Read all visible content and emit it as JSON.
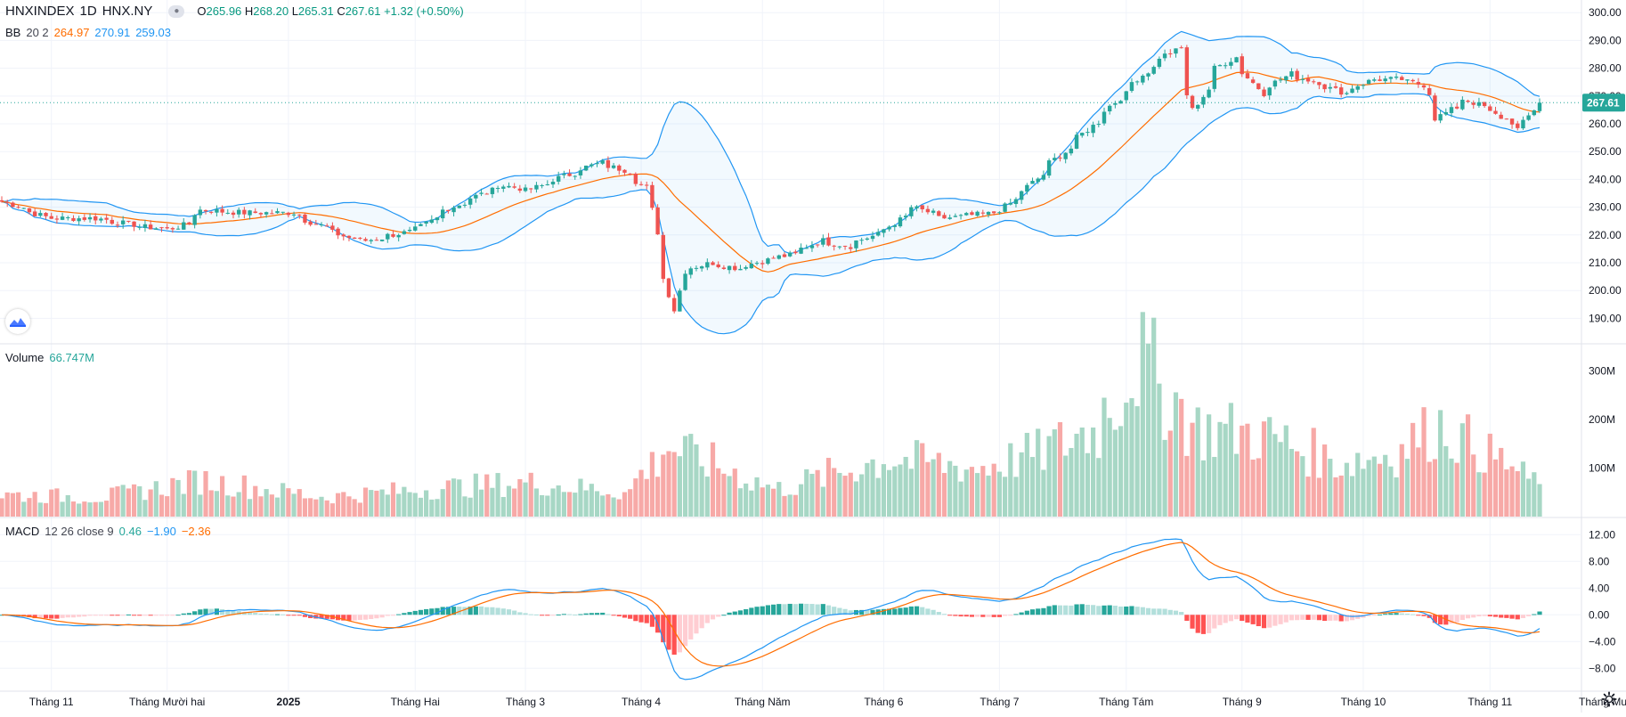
{
  "header": {
    "symbol": "HNXINDEX",
    "interval": "1D",
    "exchange": "HNX.NY",
    "ohlc": {
      "o_label": "O",
      "o": "265.96",
      "h_label": "H",
      "h": "268.20",
      "l_label": "L",
      "l": "265.31",
      "c_label": "C",
      "c": "267.61",
      "change": "+1.32 (+0.50%)"
    }
  },
  "bb_legend": {
    "name": "BB",
    "params": "20 2",
    "basis": "264.97",
    "upper": "270.91",
    "lower": "259.03"
  },
  "volume_legend": {
    "name": "Volume",
    "value": "66.747M"
  },
  "macd_legend": {
    "name": "MACD",
    "params": "12 26 close 9",
    "hist": "0.46",
    "macd": "−1.90",
    "signal": "−2.36"
  },
  "price_axis": {
    "ticks": [
      "300.00",
      "290.00",
      "280.00",
      "270.00",
      "260.00",
      "250.00",
      "240.00",
      "230.00",
      "220.00",
      "210.00",
      "200.00",
      "190.00"
    ],
    "last_price": "267.61"
  },
  "volume_axis": {
    "ticks": [
      "300M",
      "200M",
      "100M"
    ]
  },
  "macd_axis": {
    "ticks": [
      "12.00",
      "8.00",
      "4.00",
      "0.00",
      "−4.00",
      "−8.00"
    ]
  },
  "time_axis": {
    "labels": [
      "Tháng 11",
      "Tháng Mười hai",
      "2025",
      "Tháng Hai",
      "Tháng 3",
      "Tháng 4",
      "Tháng Năm",
      "Tháng 6",
      "Tháng 7",
      "Tháng Tám",
      "Tháng 9",
      "Tháng 10",
      "Tháng 11",
      "Tháng Mười hai"
    ]
  },
  "colors": {
    "up": "#26a69a",
    "down": "#ef5350",
    "volume_up": "#a7d7c5",
    "volume_down": "#f7a9a7",
    "bb_band": "#2196f3",
    "bb_basis": "#ff6d00",
    "bb_fill": "#2196f3",
    "macd_line": "#2196f3",
    "signal_line": "#ff6d00",
    "hist_up_strong": "#26a69a",
    "hist_up_weak": "#b2dfdb",
    "hist_down_strong": "#ff5252",
    "hist_down_weak": "#ffcdd2",
    "last_price_bg": "#26a69a",
    "grid": "#f0f3fa"
  },
  "icons": {
    "visibility": "eye-icon",
    "logo": "tradingview-logo-icon",
    "settings": "gear-icon"
  },
  "chart_data": [
    {
      "type": "candlestick",
      "title": "HNXINDEX",
      "x_start": "2024-10-21",
      "x_end": "2025-11-14",
      "ylim": [
        185,
        302
      ],
      "anchor_closes": [
        [
          "2024-10-21",
          232
        ],
        [
          "2024-11-01",
          226
        ],
        [
          "2024-11-13",
          226
        ],
        [
          "2024-11-25",
          223
        ],
        [
          "2024-12-02",
          222
        ],
        [
          "2024-12-06",
          224
        ],
        [
          "2024-12-10",
          229
        ],
        [
          "2024-12-20",
          228
        ],
        [
          "2025-01-02",
          228
        ],
        [
          "2025-01-08",
          224
        ],
        [
          "2025-01-16",
          219
        ],
        [
          "2025-01-21",
          218
        ],
        [
          "2025-02-03",
          222
        ],
        [
          "2025-02-10",
          229
        ],
        [
          "2025-02-18",
          234
        ],
        [
          "2025-02-24",
          238
        ],
        [
          "2025-03-03",
          236
        ],
        [
          "2025-03-10",
          240
        ],
        [
          "2025-03-17",
          244
        ],
        [
          "2025-03-21",
          246
        ],
        [
          "2025-03-28",
          243
        ],
        [
          "2025-04-02",
          237
        ],
        [
          "2025-04-04",
          221
        ],
        [
          "2025-04-09",
          193
        ],
        [
          "2025-04-11",
          207
        ],
        [
          "2025-04-18",
          210
        ],
        [
          "2025-04-25",
          208
        ],
        [
          "2025-05-02",
          211
        ],
        [
          "2025-05-09",
          213
        ],
        [
          "2025-05-16",
          218
        ],
        [
          "2025-05-23",
          216
        ],
        [
          "2025-06-02",
          222
        ],
        [
          "2025-06-09",
          230
        ],
        [
          "2025-06-16",
          226
        ],
        [
          "2025-06-23",
          227
        ],
        [
          "2025-06-30",
          228
        ],
        [
          "2025-07-07",
          236
        ],
        [
          "2025-07-14",
          246
        ],
        [
          "2025-07-21",
          255
        ],
        [
          "2025-07-28",
          265
        ],
        [
          "2025-08-04",
          275
        ],
        [
          "2025-08-11",
          284
        ],
        [
          "2025-08-15",
          287
        ],
        [
          "2025-08-19",
          265
        ],
        [
          "2025-08-25",
          280
        ],
        [
          "2025-08-29",
          284
        ],
        [
          "2025-09-05",
          271
        ],
        [
          "2025-09-12",
          278
        ],
        [
          "2025-09-19",
          275
        ],
        [
          "2025-09-26",
          271
        ],
        [
          "2025-10-03",
          276
        ],
        [
          "2025-10-10",
          276
        ],
        [
          "2025-10-16",
          274
        ],
        [
          "2025-10-20",
          262
        ],
        [
          "2025-10-27",
          269
        ],
        [
          "2025-11-03",
          264
        ],
        [
          "2025-11-10",
          258
        ],
        [
          "2025-11-14",
          267.61
        ]
      ],
      "volume_anchors_m": [
        [
          "2024-10-21",
          45
        ],
        [
          "2024-11-15",
          40
        ],
        [
          "2024-12-10",
          75
        ],
        [
          "2025-01-10",
          40
        ],
        [
          "2025-02-10",
          60
        ],
        [
          "2025-03-03",
          70
        ],
        [
          "2025-03-28",
          50
        ],
        [
          "2025-04-07",
          145
        ],
        [
          "2025-04-18",
          110
        ],
        [
          "2025-05-05",
          55
        ],
        [
          "2025-06-02",
          120
        ],
        [
          "2025-06-25",
          100
        ],
        [
          "2025-07-10",
          130
        ],
        [
          "2025-07-25",
          180
        ],
        [
          "2025-08-05",
          325
        ],
        [
          "2025-08-12",
          255
        ],
        [
          "2025-08-20",
          180
        ],
        [
          "2025-09-05",
          170
        ],
        [
          "2025-09-25",
          110
        ],
        [
          "2025-10-10",
          135
        ],
        [
          "2025-10-20",
          190
        ],
        [
          "2025-11-03",
          125
        ],
        [
          "2025-11-14",
          67
        ]
      ],
      "bollinger": {
        "length": 20,
        "mult": 2
      },
      "macd": {
        "fast": 12,
        "slow": 26,
        "signal": 9
      }
    }
  ]
}
